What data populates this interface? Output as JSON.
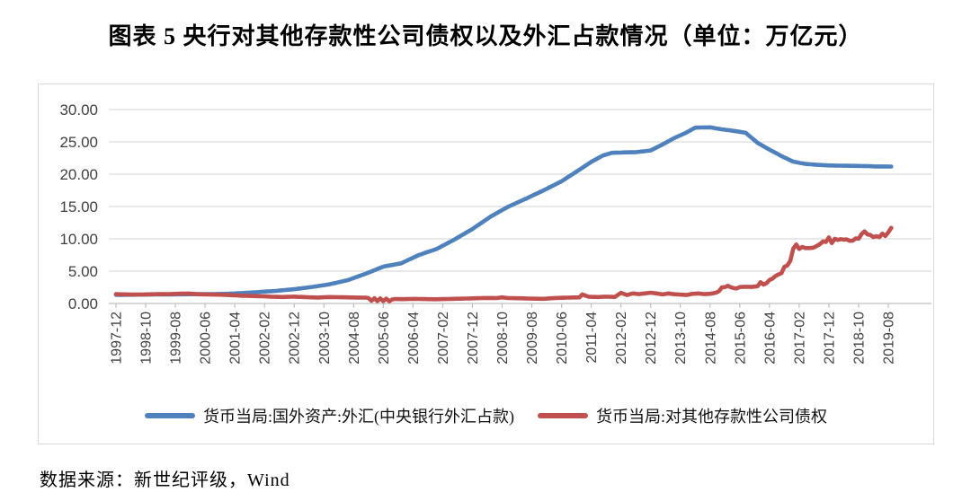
{
  "page": {
    "title": "图表 5  央行对其他存款性公司债权以及外汇占款情况（单位：万亿元）",
    "source_note": "数据来源：新世纪评级，Wind"
  },
  "colors": {
    "fx_line": "#4F81BD",
    "claims_line": "#C0504D",
    "gridline": "#D9D9D9",
    "axis_line": "#BFBFBF",
    "axis_text": "#3F3F3F",
    "panel_border": "#D9D9D9"
  },
  "chart_data": {
    "type": "line",
    "title": "图表 5  央行对其他存款性公司债权以及外汇占款情况（单位：万亿元）",
    "unit": "万亿元",
    "grid": true,
    "legend_position": "bottom",
    "ylim": [
      0,
      30
    ],
    "ytick_labels": [
      "30.00",
      "25.00",
      "20.00",
      "15.00",
      "10.00",
      "5.00",
      "0.00"
    ],
    "x_start": "1997-12",
    "x_end": "2019-09",
    "x_tick_interval_months": 10,
    "x_tick_labels": [
      "1997-12",
      "1998-10",
      "1999-08",
      "2000-06",
      "2001-04",
      "2002-02",
      "2002-12",
      "2003-10",
      "2004-08",
      "2005-06",
      "2006-04",
      "2007-02",
      "2007-12",
      "2008-10",
      "2009-08",
      "2010-06",
      "2011-04",
      "2012-02",
      "2012-12",
      "2013-10",
      "2014-08",
      "2015-06",
      "2016-04",
      "2017-02",
      "2017-12",
      "2018-10",
      "2019-08"
    ],
    "series": [
      {
        "name": "货币当局:国外资产:外汇(中央银行外汇占款)",
        "color": "#4F81BD",
        "points": [
          [
            "1997-12",
            1.33
          ],
          [
            "1998-10",
            1.37
          ],
          [
            "1999-08",
            1.41
          ],
          [
            "2000-06",
            1.45
          ],
          [
            "2000-12",
            1.48
          ],
          [
            "2001-06",
            1.6
          ],
          [
            "2001-12",
            1.77
          ],
          [
            "2002-06",
            1.95
          ],
          [
            "2002-12",
            2.21
          ],
          [
            "2003-06",
            2.55
          ],
          [
            "2003-12",
            2.98
          ],
          [
            "2004-06",
            3.6
          ],
          [
            "2004-12",
            4.59
          ],
          [
            "2005-06",
            5.7
          ],
          [
            "2005-12",
            6.21
          ],
          [
            "2006-06",
            7.5
          ],
          [
            "2006-12",
            8.44
          ],
          [
            "2007-06",
            9.9
          ],
          [
            "2007-12",
            11.52
          ],
          [
            "2008-06",
            13.4
          ],
          [
            "2008-12",
            14.96
          ],
          [
            "2009-06",
            16.2
          ],
          [
            "2009-12",
            17.51
          ],
          [
            "2010-06",
            18.9
          ],
          [
            "2010-12",
            20.68
          ],
          [
            "2011-04",
            21.9
          ],
          [
            "2011-08",
            22.9
          ],
          [
            "2011-11",
            23.3
          ],
          [
            "2012-03",
            23.37
          ],
          [
            "2012-07",
            23.4
          ],
          [
            "2012-12",
            23.67
          ],
          [
            "2013-04",
            24.6
          ],
          [
            "2013-08",
            25.6
          ],
          [
            "2013-12",
            26.43
          ],
          [
            "2014-03",
            27.2
          ],
          [
            "2014-08",
            27.25
          ],
          [
            "2014-12",
            26.93
          ],
          [
            "2015-04",
            26.7
          ],
          [
            "2015-08",
            26.4
          ],
          [
            "2015-12",
            24.85
          ],
          [
            "2016-04",
            23.8
          ],
          [
            "2016-08",
            22.8
          ],
          [
            "2016-12",
            21.94
          ],
          [
            "2017-04",
            21.6
          ],
          [
            "2017-08",
            21.45
          ],
          [
            "2017-12",
            21.35
          ],
          [
            "2018-06",
            21.3
          ],
          [
            "2018-12",
            21.26
          ],
          [
            "2019-04",
            21.2
          ],
          [
            "2019-09",
            21.18
          ]
        ]
      },
      {
        "name": "货币当局:对其他存款性公司债权",
        "color": "#C0504D",
        "points": [
          [
            "1997-12",
            1.44
          ],
          [
            "1998-04",
            1.4
          ],
          [
            "1998-08",
            1.37
          ],
          [
            "1998-12",
            1.43
          ],
          [
            "1999-04",
            1.45
          ],
          [
            "1999-08",
            1.48
          ],
          [
            "1999-12",
            1.54
          ],
          [
            "2000-04",
            1.42
          ],
          [
            "2000-08",
            1.38
          ],
          [
            "2000-12",
            1.35
          ],
          [
            "2001-04",
            1.25
          ],
          [
            "2001-08",
            1.18
          ],
          [
            "2001-12",
            1.13
          ],
          [
            "2002-04",
            1.06
          ],
          [
            "2002-08",
            1.0
          ],
          [
            "2002-12",
            1.05
          ],
          [
            "2003-04",
            0.98
          ],
          [
            "2003-08",
            0.92
          ],
          [
            "2003-12",
            1.0
          ],
          [
            "2004-04",
            0.96
          ],
          [
            "2004-08",
            0.93
          ],
          [
            "2004-12",
            0.9
          ],
          [
            "2005-01",
            0.85
          ],
          [
            "2005-02",
            0.42
          ],
          [
            "2005-03",
            0.8
          ],
          [
            "2005-04",
            0.38
          ],
          [
            "2005-05",
            0.78
          ],
          [
            "2005-06",
            0.36
          ],
          [
            "2005-07",
            0.75
          ],
          [
            "2005-08",
            0.35
          ],
          [
            "2005-09",
            0.62
          ],
          [
            "2005-10",
            0.7
          ],
          [
            "2005-11",
            0.68
          ],
          [
            "2005-12",
            0.66
          ],
          [
            "2006-04",
            0.71
          ],
          [
            "2006-08",
            0.68
          ],
          [
            "2006-12",
            0.65
          ],
          [
            "2007-04",
            0.7
          ],
          [
            "2007-08",
            0.74
          ],
          [
            "2007-12",
            0.79
          ],
          [
            "2008-04",
            0.85
          ],
          [
            "2008-08",
            0.84
          ],
          [
            "2008-10",
            0.95
          ],
          [
            "2008-12",
            0.84
          ],
          [
            "2009-04",
            0.8
          ],
          [
            "2009-08",
            0.75
          ],
          [
            "2009-12",
            0.72
          ],
          [
            "2010-04",
            0.85
          ],
          [
            "2010-08",
            0.9
          ],
          [
            "2010-12",
            0.95
          ],
          [
            "2011-01",
            1.4
          ],
          [
            "2011-03",
            1.05
          ],
          [
            "2011-06",
            1.0
          ],
          [
            "2011-09",
            1.06
          ],
          [
            "2011-12",
            1.02
          ],
          [
            "2012-02",
            1.65
          ],
          [
            "2012-04",
            1.3
          ],
          [
            "2012-06",
            1.55
          ],
          [
            "2012-08",
            1.45
          ],
          [
            "2012-10",
            1.55
          ],
          [
            "2012-12",
            1.67
          ],
          [
            "2013-02",
            1.55
          ],
          [
            "2013-04",
            1.4
          ],
          [
            "2013-06",
            1.55
          ],
          [
            "2013-08",
            1.43
          ],
          [
            "2013-10",
            1.38
          ],
          [
            "2013-12",
            1.31
          ],
          [
            "2014-02",
            1.48
          ],
          [
            "2014-04",
            1.55
          ],
          [
            "2014-06",
            1.44
          ],
          [
            "2014-08",
            1.5
          ],
          [
            "2014-10",
            1.66
          ],
          [
            "2014-11",
            1.9
          ],
          [
            "2014-12",
            2.5
          ],
          [
            "2015-01",
            2.53
          ],
          [
            "2015-02",
            2.74
          ],
          [
            "2015-03",
            2.52
          ],
          [
            "2015-04",
            2.37
          ],
          [
            "2015-05",
            2.33
          ],
          [
            "2015-06",
            2.54
          ],
          [
            "2015-08",
            2.59
          ],
          [
            "2015-10",
            2.56
          ],
          [
            "2015-12",
            2.66
          ],
          [
            "2016-01",
            3.29
          ],
          [
            "2016-02",
            2.91
          ],
          [
            "2016-03",
            3.14
          ],
          [
            "2016-04",
            3.62
          ],
          [
            "2016-05",
            3.83
          ],
          [
            "2016-06",
            4.23
          ],
          [
            "2016-07",
            4.5
          ],
          [
            "2016-08",
            4.67
          ],
          [
            "2016-09",
            5.67
          ],
          [
            "2016-10",
            5.87
          ],
          [
            "2016-11",
            6.6
          ],
          [
            "2016-12",
            8.47
          ],
          [
            "2017-01",
            9.13
          ],
          [
            "2017-02",
            8.43
          ],
          [
            "2017-03",
            8.74
          ],
          [
            "2017-04",
            8.58
          ],
          [
            "2017-05",
            8.57
          ],
          [
            "2017-06",
            8.59
          ],
          [
            "2017-07",
            8.66
          ],
          [
            "2017-08",
            8.91
          ],
          [
            "2017-09",
            9.18
          ],
          [
            "2017-10",
            9.6
          ],
          [
            "2017-11",
            9.52
          ],
          [
            "2017-12",
            10.22
          ],
          [
            "2018-01",
            9.35
          ],
          [
            "2018-02",
            10.0
          ],
          [
            "2018-03",
            9.83
          ],
          [
            "2018-04",
            9.95
          ],
          [
            "2018-05",
            9.87
          ],
          [
            "2018-06",
            9.91
          ],
          [
            "2018-07",
            9.7
          ],
          [
            "2018-08",
            9.71
          ],
          [
            "2018-09",
            10.07
          ],
          [
            "2018-10",
            10.01
          ],
          [
            "2018-11",
            10.74
          ],
          [
            "2018-12",
            11.15
          ],
          [
            "2019-01",
            10.68
          ],
          [
            "2019-02",
            10.59
          ],
          [
            "2019-03",
            10.26
          ],
          [
            "2019-04",
            10.42
          ],
          [
            "2019-05",
            10.26
          ],
          [
            "2019-06",
            10.79
          ],
          [
            "2019-07",
            10.44
          ],
          [
            "2019-08",
            11.0
          ],
          [
            "2019-09",
            11.7
          ]
        ]
      }
    ]
  }
}
